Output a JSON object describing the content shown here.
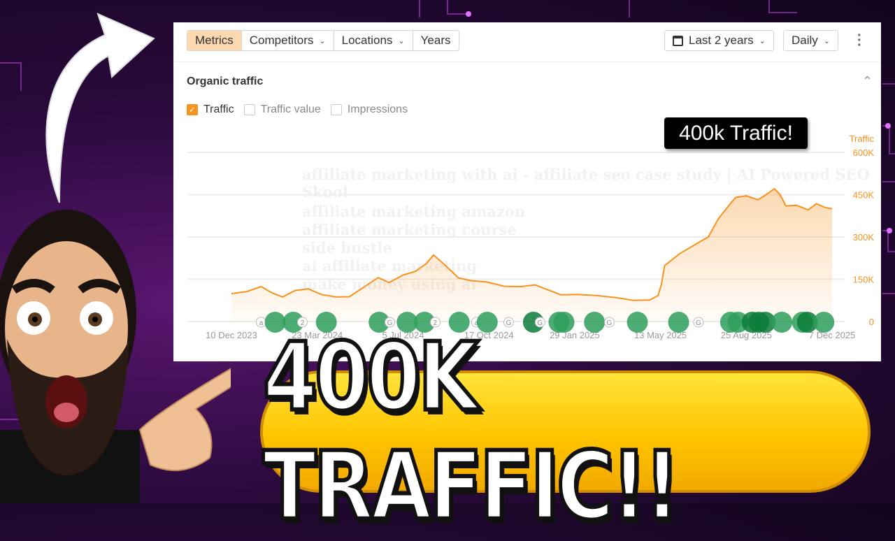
{
  "toolbar": {
    "tabs": [
      {
        "label": "Metrics",
        "active": true
      },
      {
        "label": "Competitors",
        "dropdown": true
      },
      {
        "label": "Locations",
        "dropdown": true
      },
      {
        "label": "Years"
      }
    ],
    "date_range": "Last 2 years",
    "granularity": "Daily",
    "calendar_icon": "calendar-icon",
    "more_icon": "kebab-icon"
  },
  "section": {
    "title": "Organic traffic"
  },
  "checkboxes": [
    {
      "label": "Traffic",
      "checked": true
    },
    {
      "label": "Traffic value",
      "checked": false
    },
    {
      "label": "Impressions",
      "checked": false
    }
  ],
  "watermark": {
    "headline": "affiliate marketing with ai - affiliate seo case study | AI Powered SEO Skool",
    "lines": [
      "affiliate marketing amazon",
      "affiliate marketing course",
      "side hustle",
      "ai affiliate marketing",
      "make money using ai"
    ]
  },
  "callout": "400k Traffic!",
  "banner": "400K TRAFFIC!!",
  "colors": {
    "accent": "#f7921e",
    "marker": "#2e9e5b",
    "marker_dark": "#0a7d3a",
    "banner": "#ffcc00"
  },
  "chart_data": {
    "type": "area",
    "series": [
      {
        "name": "Traffic",
        "color": "#f7921e",
        "points": [
          [
            "2023-12-10",
            99
          ],
          [
            "2023-12-28",
            106
          ],
          [
            "2024-01-15",
            124
          ],
          [
            "2024-01-28",
            102
          ],
          [
            "2024-02-10",
            87
          ],
          [
            "2024-02-25",
            110
          ],
          [
            "2024-03-12",
            116
          ],
          [
            "2024-03-28",
            96
          ],
          [
            "2024-04-15",
            87
          ],
          [
            "2024-05-01",
            88
          ],
          [
            "2024-05-20",
            125
          ],
          [
            "2024-06-05",
            156
          ],
          [
            "2024-06-18",
            138
          ],
          [
            "2024-07-05",
            165
          ],
          [
            "2024-07-20",
            178
          ],
          [
            "2024-08-02",
            205
          ],
          [
            "2024-08-11",
            236
          ],
          [
            "2024-08-25",
            200
          ],
          [
            "2024-09-10",
            155
          ],
          [
            "2024-09-25",
            145
          ],
          [
            "2024-10-15",
            140
          ],
          [
            "2024-11-05",
            125
          ],
          [
            "2024-11-25",
            124
          ],
          [
            "2024-12-12",
            130
          ],
          [
            "2024-12-28",
            112
          ],
          [
            "2025-01-12",
            95
          ],
          [
            "2025-02-01",
            96
          ],
          [
            "2025-02-25",
            92
          ],
          [
            "2025-03-20",
            85
          ],
          [
            "2025-04-10",
            75
          ],
          [
            "2025-04-30",
            76
          ],
          [
            "2025-05-10",
            92
          ],
          [
            "2025-05-14",
            130
          ],
          [
            "2025-05-18",
            198
          ],
          [
            "2025-06-05",
            240
          ],
          [
            "2025-06-25",
            275
          ],
          [
            "2025-07-10",
            300
          ],
          [
            "2025-07-22",
            364
          ],
          [
            "2025-08-02",
            405
          ],
          [
            "2025-08-12",
            440
          ],
          [
            "2025-08-25",
            446
          ],
          [
            "2025-09-08",
            432
          ],
          [
            "2025-09-18",
            450
          ],
          [
            "2025-09-28",
            471
          ],
          [
            "2025-10-05",
            450
          ],
          [
            "2025-10-12",
            410
          ],
          [
            "2025-10-25",
            412
          ],
          [
            "2025-11-08",
            396
          ],
          [
            "2025-11-18",
            418
          ],
          [
            "2025-11-28",
            405
          ],
          [
            "2025-12-07",
            400
          ]
        ]
      }
    ],
    "x_ticks": [
      "10 Dec 2023",
      "23 Mar 2024",
      "5 Jul 2024",
      "17 Oct 2024",
      "29 Jan 2025",
      "13 May 2025",
      "25 Aug 2025",
      "7 Dec 2025"
    ],
    "x_tick_dates": [
      "2023-12-10",
      "2024-03-23",
      "2024-07-05",
      "2024-10-17",
      "2025-01-29",
      "2025-05-13",
      "2025-08-25",
      "2025-12-07"
    ],
    "y_label": "Traffic",
    "y_ticks": [
      "0",
      "150K",
      "300K",
      "450K",
      "600K"
    ],
    "y_tick_values": [
      0,
      150,
      300,
      450,
      600
    ],
    "ylim": [
      0,
      600
    ],
    "grid": true,
    "annotations": [
      [
        "2024-01-15",
        "a"
      ],
      [
        "2024-02-01",
        "u"
      ],
      [
        "2024-02-23",
        "u"
      ],
      [
        "2024-03-05",
        "2"
      ],
      [
        "2024-04-03",
        "u"
      ],
      [
        "2024-06-06",
        "u"
      ],
      [
        "2024-06-19",
        "G"
      ],
      [
        "2024-07-10",
        "u"
      ],
      [
        "2024-07-31",
        "u"
      ],
      [
        "2024-08-13",
        "2"
      ],
      [
        "2024-09-11",
        "u"
      ],
      [
        "2024-10-02",
        "a"
      ],
      [
        "2024-10-15",
        "u"
      ],
      [
        "2024-11-10",
        "G"
      ],
      [
        "2024-12-10",
        "d"
      ],
      [
        "2024-12-18",
        "G"
      ],
      [
        "2025-01-10",
        "u"
      ],
      [
        "2025-01-16",
        "u"
      ],
      [
        "2025-02-22",
        "u"
      ],
      [
        "2025-03-12",
        "G"
      ],
      [
        "2025-04-15",
        "u"
      ],
      [
        "2025-06-04",
        "u"
      ],
      [
        "2025-06-28",
        "G"
      ],
      [
        "2025-08-06",
        "u"
      ],
      [
        "2025-08-15",
        "u"
      ],
      [
        "2025-09-01",
        "d"
      ],
      [
        "2025-09-09",
        "d"
      ],
      [
        "2025-09-17",
        "d"
      ],
      [
        "2025-10-07",
        "u"
      ],
      [
        "2025-11-01",
        "u"
      ],
      [
        "2025-11-07",
        "d"
      ],
      [
        "2025-11-27",
        "u"
      ]
    ]
  }
}
